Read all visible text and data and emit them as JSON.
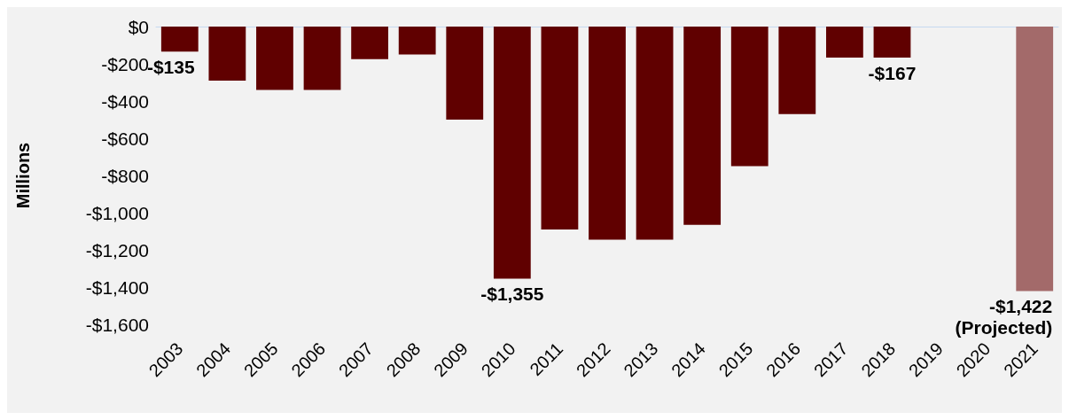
{
  "chart_data": {
    "type": "bar",
    "ylabel": "Millions",
    "categories": [
      "2003",
      "2004",
      "2005",
      "2006",
      "2007",
      "2008",
      "2009",
      "2010",
      "2011",
      "2012",
      "2013",
      "2014",
      "2015",
      "2016",
      "2017",
      "2018",
      "2019",
      "2020",
      "2021"
    ],
    "values": [
      -135,
      -290,
      -340,
      -340,
      -175,
      -150,
      -500,
      -1355,
      -1090,
      -1145,
      -1145,
      -1065,
      -750,
      -470,
      -167,
      -167,
      null,
      null,
      -1422
    ],
    "colors": [
      "#600000",
      "#600000",
      "#600000",
      "#600000",
      "#600000",
      "#600000",
      "#600000",
      "#600000",
      "#600000",
      "#600000",
      "#600000",
      "#600000",
      "#600000",
      "#600000",
      "#600000",
      "#600000",
      "#600000",
      "#600000",
      "#a36a6a"
    ],
    "value_labels": [
      "-$135",
      null,
      null,
      null,
      null,
      null,
      null,
      "-$1,355",
      null,
      null,
      null,
      null,
      null,
      null,
      null,
      "-$167",
      null,
      null,
      "-$1,422\n(Projected)"
    ],
    "ylim": [
      -1600,
      0
    ],
    "yticks": [
      {
        "value": -1600,
        "label": "-$1,600"
      },
      {
        "value": -1400,
        "label": "-$1,400"
      },
      {
        "value": -1200,
        "label": "-$1,200"
      },
      {
        "value": -1000,
        "label": "-$1,000"
      },
      {
        "value": -800,
        "label": "-$800"
      },
      {
        "value": -600,
        "label": "-$600"
      },
      {
        "value": -400,
        "label": "-$400"
      },
      {
        "value": -200,
        "label": "-$200"
      },
      {
        "value": 0,
        "label": "$0"
      }
    ],
    "grid": false
  }
}
